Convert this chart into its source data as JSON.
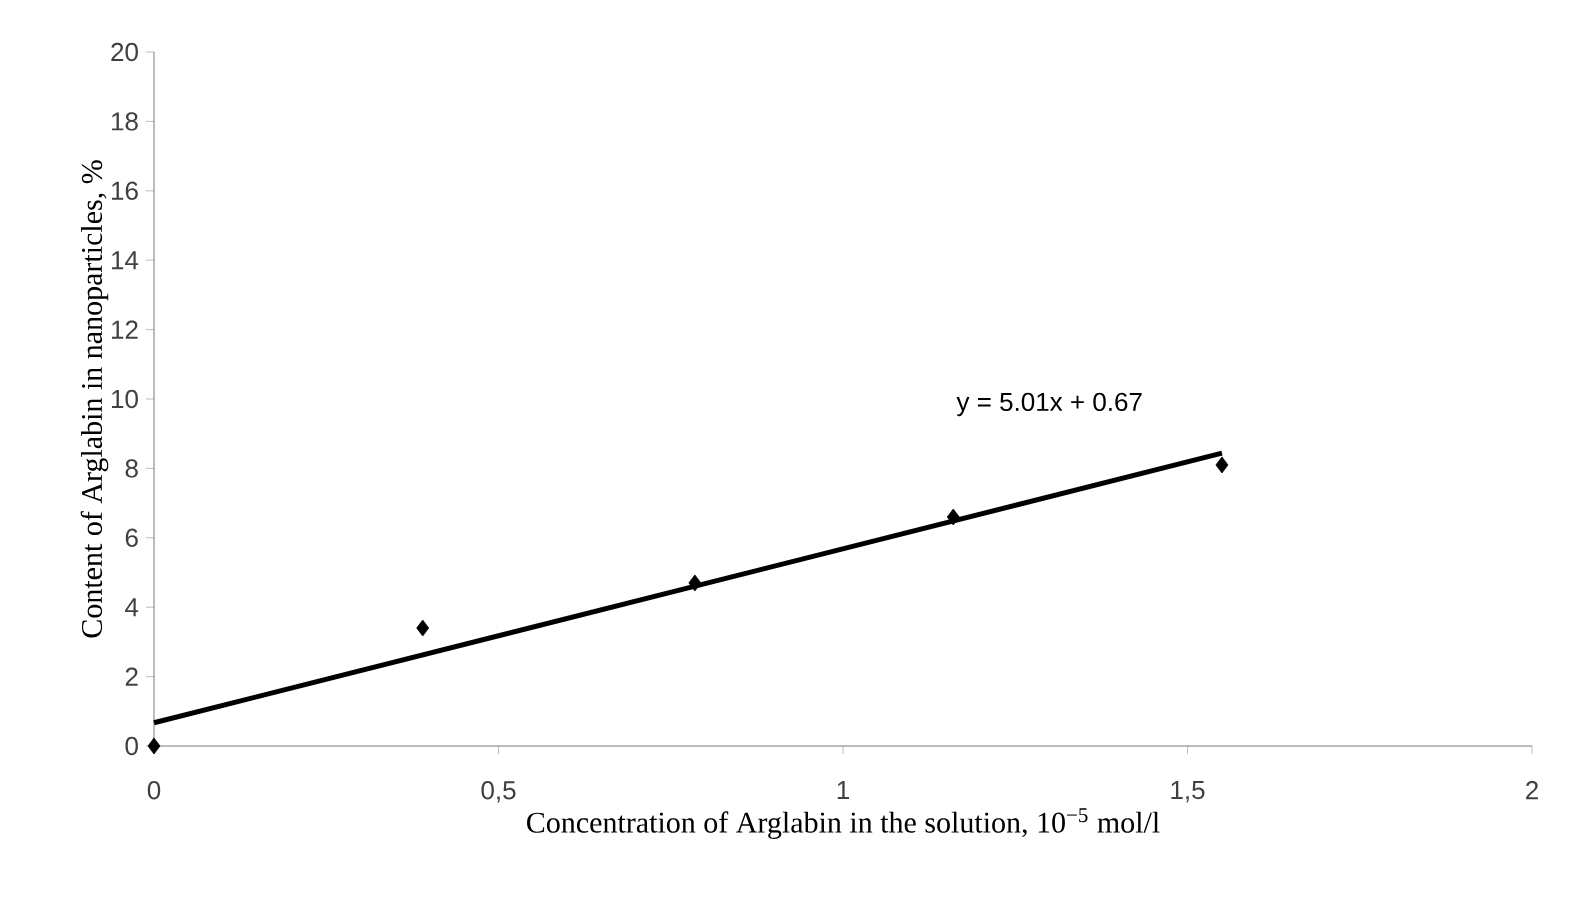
{
  "chart_data": {
    "type": "scatter",
    "xlabel": "Concentration of Arglabin in the solution, 10$^{−5}$ mol/l",
    "ylabel": "Content of Arglabin in nanoparticles,  %",
    "x": [
      0,
      0.39,
      0.785,
      1.16,
      1.55
    ],
    "series": [
      {
        "color": "#000000",
        "marker": "diamond",
        "values": [
          0,
          3.4,
          4.7,
          6.6,
          8.1
        ]
      },
      {
        "type": "line",
        "color": "#000000",
        "x": [
          0,
          1.55
        ],
        "values": [
          0.67,
          8.44
        ],
        "line_style": "solid"
      }
    ],
    "annotations": [
      "y = 5.01x + 0.67"
    ],
    "xlim": [
      0,
      2
    ],
    "ylim": [
      0,
      20
    ],
    "xticks": [
      0,
      {
        "value": 0.5,
        "label": "0,5"
      },
      1,
      {
        "value": 1.5,
        "label": "1,5"
      },
      2
    ],
    "yticks": [
      0,
      2,
      4,
      6,
      8,
      10,
      12,
      14,
      16,
      18,
      20
    ]
  }
}
